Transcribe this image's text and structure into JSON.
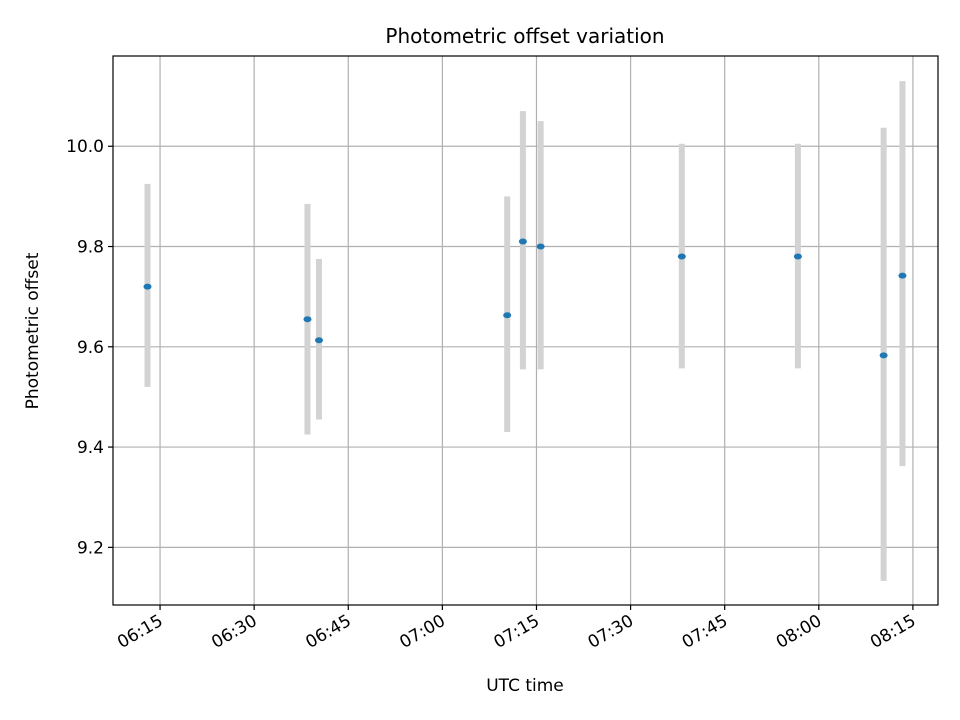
{
  "chart_data": {
    "type": "scatter",
    "title": "Photometric offset variation",
    "xlabel": "UTC time",
    "ylabel": "Photometric offset",
    "x_ticks": [
      "06:15",
      "06:30",
      "06:45",
      "07:00",
      "07:15",
      "07:30",
      "07:45",
      "08:00",
      "08:15"
    ],
    "y_ticks": [
      "9.2",
      "9.4",
      "9.6",
      "9.8",
      "10.0"
    ],
    "xlim": [
      "06:07:30",
      "08:19:00"
    ],
    "ylim": [
      9.085,
      10.18
    ],
    "grid": true,
    "colors": {
      "point": "#1f77b4",
      "errorbar": "#d3d3d3",
      "grid": "#b0b0b0"
    },
    "points": [
      {
        "x": "06:13:00",
        "y": 9.72,
        "yerr_low": 9.52,
        "yerr_high": 9.925
      },
      {
        "x": "06:38:30",
        "y": 9.655,
        "yerr_low": 9.425,
        "yerr_high": 9.885
      },
      {
        "x": "06:40:20",
        "y": 9.613,
        "yerr_low": 9.455,
        "yerr_high": 9.775
      },
      {
        "x": "07:10:20",
        "y": 9.663,
        "yerr_low": 9.43,
        "yerr_high": 9.9
      },
      {
        "x": "07:12:50",
        "y": 9.81,
        "yerr_low": 9.555,
        "yerr_high": 10.07
      },
      {
        "x": "07:15:40",
        "y": 9.8,
        "yerr_low": 9.555,
        "yerr_high": 10.05
      },
      {
        "x": "07:38:10",
        "y": 9.78,
        "yerr_low": 9.557,
        "yerr_high": 10.005
      },
      {
        "x": "07:56:40",
        "y": 9.78,
        "yerr_low": 9.557,
        "yerr_high": 10.005
      },
      {
        "x": "08:10:20",
        "y": 9.583,
        "yerr_low": 9.133,
        "yerr_high": 10.037
      },
      {
        "x": "08:13:20",
        "y": 9.742,
        "yerr_low": 9.362,
        "yerr_high": 10.13
      }
    ]
  }
}
